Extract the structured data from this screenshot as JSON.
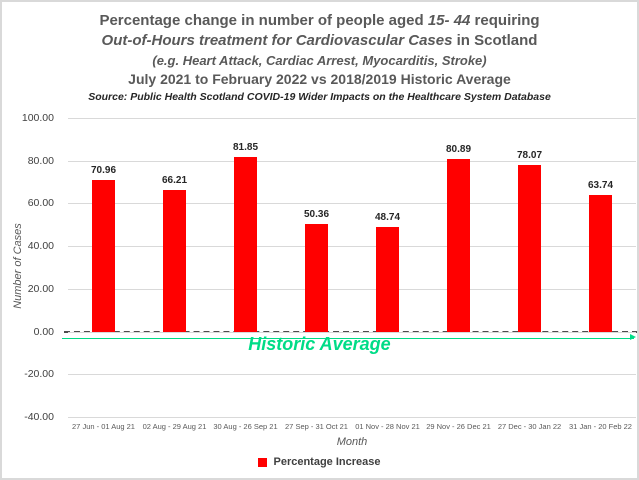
{
  "title": {
    "line1_pre": "Percentage change in number of people aged ",
    "line1_italic": "15- 44",
    "line1_post": " requiring",
    "line2_italic": "Out-of-Hours treatment for Cardiovascular Cases",
    "line2_post": " in Scotland",
    "line3": "(e.g. Heart Attack, Cardiac Arrest, Myocarditis, Stroke)",
    "line4": "July 2021 to February 2022 vs 2018/2019 Historic Average",
    "source": "Source: Public Health Scotland COVID-19 Wider Impacts on the Healthcare System Database"
  },
  "chart_data": {
    "type": "bar",
    "categories": [
      "27 Jun - 01 Aug 21",
      "02 Aug - 29 Aug 21",
      "30 Aug - 26 Sep 21",
      "27 Sep - 31 Oct 21",
      "01 Nov - 28 Nov 21",
      "29 Nov - 26 Dec 21",
      "27 Dec - 30 Jan 22",
      "31 Jan - 20 Feb 22"
    ],
    "values": [
      70.96,
      66.21,
      81.85,
      50.36,
      48.74,
      80.89,
      78.07,
      63.74
    ],
    "value_labels": [
      "70.96",
      "66.21",
      "81.85",
      "50.36",
      "48.74",
      "80.89",
      "78.07",
      "63.74"
    ],
    "xlabel": "Month",
    "ylabel": "Number of Cases",
    "ylim": [
      -40,
      100
    ],
    "ytick_step": 20,
    "ytick_labels": [
      "100.00",
      "80.00",
      "60.00",
      "40.00",
      "20.00",
      "0.00",
      "-20.00",
      "-40.00"
    ],
    "grid": true,
    "bar_color": "#ff0000",
    "reference_line": {
      "value": 0,
      "label": "Historic Average",
      "line_color": "#00dc87",
      "dashed_line_color": "#4d4d4d"
    },
    "legend": [
      {
        "label": "Percentage Increase",
        "color": "#ff0000"
      }
    ],
    "legend_position": "bottom"
  },
  "colors": {
    "bar": "#ff0000",
    "reference_green": "#00dc87",
    "gridline": "#d9d9d9",
    "title_gray": "#595959",
    "background": "#ffffff",
    "border": "#d9d9d9"
  }
}
